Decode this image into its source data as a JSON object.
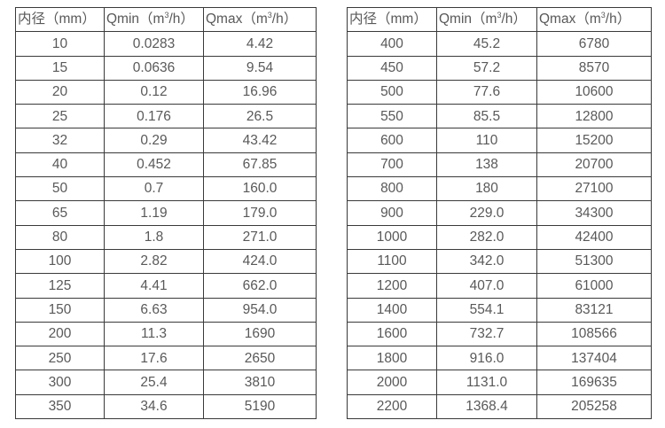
{
  "colors": {
    "background": "#ffffff",
    "table_border": "#3a3a3a",
    "table_text": "#595959"
  },
  "tables": {
    "left": {
      "headers": {
        "diameter": "内径（mm）",
        "qmin": {
          "pre": "Qmin（m",
          "sup": "3",
          "post": "/h）"
        },
        "qmax": {
          "pre": "Qmax（m",
          "sup": "3",
          "post": "/h）"
        }
      },
      "rows": [
        [
          "10",
          "0.0283",
          "4.42"
        ],
        [
          "15",
          "0.0636",
          "9.54"
        ],
        [
          "20",
          "0.12",
          "16.96"
        ],
        [
          "25",
          "0.176",
          "26.5"
        ],
        [
          "32",
          "0.29",
          "43.42"
        ],
        [
          "40",
          "0.452",
          "67.85"
        ],
        [
          "50",
          "0.7",
          "160.0"
        ],
        [
          "65",
          "1.19",
          "179.0"
        ],
        [
          "80",
          "1.8",
          "271.0"
        ],
        [
          "100",
          "2.82",
          "424.0"
        ],
        [
          "125",
          "4.41",
          "662.0"
        ],
        [
          "150",
          "6.63",
          "954.0"
        ],
        [
          "200",
          "11.3",
          "1690"
        ],
        [
          "250",
          "17.6",
          "2650"
        ],
        [
          "300",
          "25.4",
          "3810"
        ],
        [
          "350",
          "34.6",
          "5190"
        ]
      ]
    },
    "right": {
      "headers": {
        "diameter": "内径（mm）",
        "qmin": {
          "pre": "Qmin（m",
          "sup": "3",
          "post": "/h）"
        },
        "qmax": {
          "pre": "Qmax（m",
          "sup": "3",
          "post": "/h）"
        }
      },
      "rows": [
        [
          "400",
          "45.2",
          "6780"
        ],
        [
          "450",
          "57.2",
          "8570"
        ],
        [
          "500",
          "77.6",
          "10600"
        ],
        [
          "550",
          "85.5",
          "12800"
        ],
        [
          "600",
          "110",
          "15200"
        ],
        [
          "700",
          "138",
          "20700"
        ],
        [
          "800",
          "180",
          "27100"
        ],
        [
          "900",
          "229.0",
          "34300"
        ],
        [
          "1000",
          "282.0",
          "42400"
        ],
        [
          "1100",
          "342.0",
          "51300"
        ],
        [
          "1200",
          "407.0",
          "61000"
        ],
        [
          "1400",
          "554.1",
          "83121"
        ],
        [
          "1600",
          "732.7",
          "108566"
        ],
        [
          "1800",
          "916.0",
          "137404"
        ],
        [
          "2000",
          "1131.0",
          "169635"
        ],
        [
          "2200",
          "1368.4",
          "205258"
        ]
      ]
    }
  }
}
